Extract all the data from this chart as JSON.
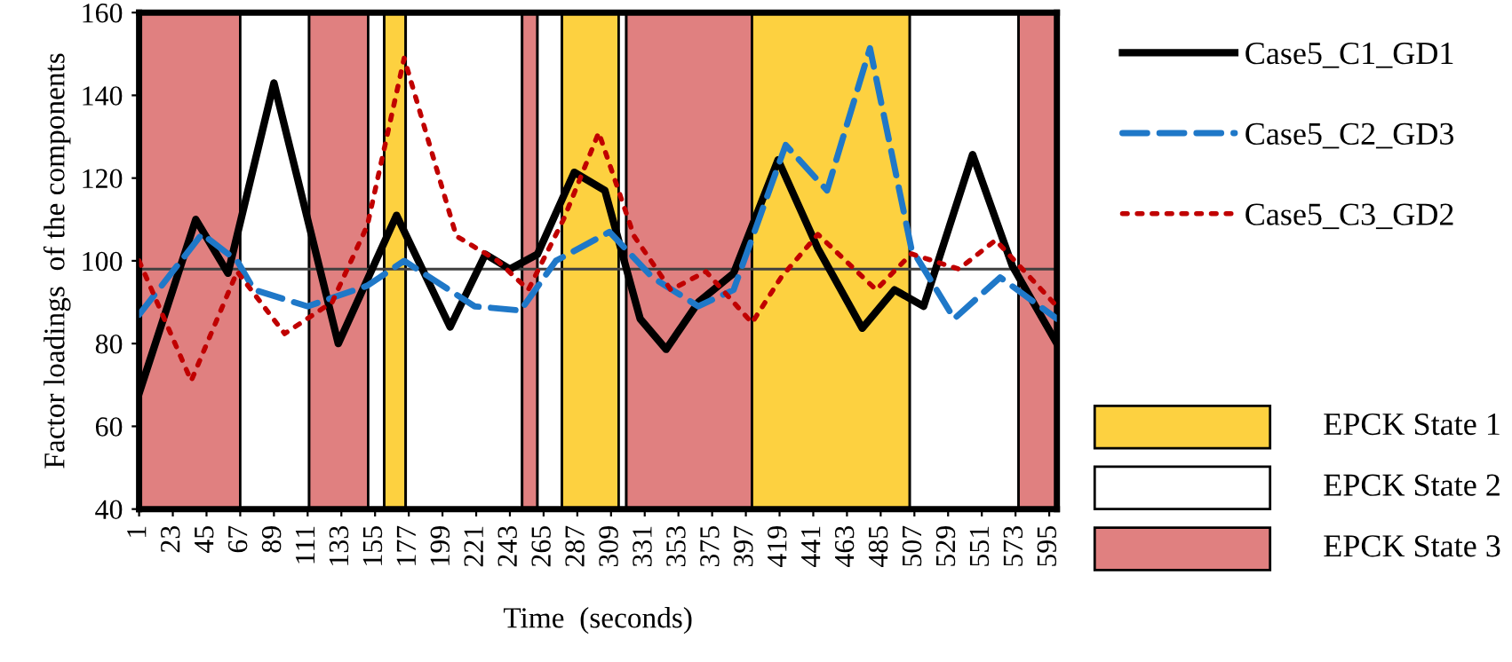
{
  "chart_data": {
    "type": "line",
    "xlabel": "Time  (seconds)",
    "ylabel": "Factor loadings  of the components",
    "xlim": [
      1,
      600
    ],
    "xticks": [
      1,
      23,
      45,
      67,
      89,
      111,
      133,
      155,
      177,
      199,
      221,
      243,
      265,
      287,
      309,
      331,
      353,
      375,
      397,
      419,
      441,
      463,
      485,
      507,
      529,
      551,
      573,
      595
    ],
    "ylim": [
      40,
      160
    ],
    "yticks": [
      40,
      60,
      80,
      100,
      120,
      140,
      160
    ],
    "grid": false,
    "legend": "right",
    "marker": "none",
    "annotations": [
      "EPCK State 1",
      "EPCK State 2",
      "EPCK State 3"
    ],
    "series": [
      {
        "name": "Case5_C1_GD1",
        "color": "#000000",
        "line_style": "solid",
        "x": [
          1,
          38,
          59,
          89,
          131,
          169,
          204,
          227,
          243,
          261,
          285,
          305,
          328,
          345,
          366,
          389,
          418,
          444,
          473,
          494,
          513,
          545,
          571,
          600
        ],
        "values": [
          68,
          110,
          97,
          143,
          80,
          111,
          84,
          101.6,
          98,
          101.6,
          121.4,
          117,
          86,
          78.6,
          90,
          97,
          124.4,
          103,
          83.7,
          93,
          89,
          125.7,
          98.7,
          80
        ]
      },
      {
        "name": "Case5_C2_GD3",
        "color": "#1f78c8",
        "line_style": "dashed",
        "x": [
          1,
          42,
          65,
          76,
          111,
          150,
          174,
          220,
          250,
          273,
          308,
          336,
          366,
          389,
          423,
          450,
          478,
          505,
          533,
          563,
          600
        ],
        "values": [
          87,
          106.5,
          100,
          93,
          89,
          94,
          100,
          89,
          88,
          100,
          107,
          96,
          89,
          93,
          128,
          117,
          151.4,
          103,
          86,
          96,
          86
        ]
      },
      {
        "name": "Case5_C3_GD2",
        "color": "#c00000",
        "line_style": "dotted",
        "x": [
          1,
          35,
          65,
          96,
          127,
          150,
          174,
          208,
          235,
          255,
          278,
          301,
          324,
          348,
          371,
          401,
          420,
          444,
          482,
          505,
          536,
          560,
          600
        ],
        "values": [
          100,
          71,
          97.4,
          82.4,
          90,
          108.6,
          149,
          106,
          100,
          93,
          110,
          131,
          106,
          93,
          97.4,
          85,
          96,
          106.4,
          93,
          101.7,
          98,
          105,
          89
        ]
      }
    ],
    "ref_lines": [
      {
        "axis": "y",
        "value": 98,
        "color": "#404040"
      }
    ],
    "bands": [
      {
        "axis": "x",
        "from": 1,
        "to": 67,
        "color": "#e08080"
      },
      {
        "axis": "x",
        "from": 67,
        "to": 112,
        "color": "#ffffff"
      },
      {
        "axis": "x",
        "from": 112,
        "to": 150.5,
        "color": "#e08080"
      },
      {
        "axis": "x",
        "from": 150.5,
        "to": 161,
        "color": "#ffffff"
      },
      {
        "axis": "x",
        "from": 161,
        "to": 175,
        "color": "#fdd140"
      },
      {
        "axis": "x",
        "from": 175,
        "to": 251,
        "color": "#ffffff"
      },
      {
        "axis": "x",
        "from": 251,
        "to": 261,
        "color": "#e08080"
      },
      {
        "axis": "x",
        "from": 261,
        "to": 277,
        "color": "#ffffff"
      },
      {
        "axis": "x",
        "from": 277,
        "to": 314,
        "color": "#fdd140"
      },
      {
        "axis": "x",
        "from": 314,
        "to": 319,
        "color": "#ffffff"
      },
      {
        "axis": "x",
        "from": 319,
        "to": 401,
        "color": "#e08080"
      },
      {
        "axis": "x",
        "from": 401,
        "to": 504,
        "color": "#fdd140"
      },
      {
        "axis": "x",
        "from": 504,
        "to": 575,
        "color": "#ffffff"
      },
      {
        "axis": "x",
        "from": 575,
        "to": 600,
        "color": "#e08080"
      }
    ]
  }
}
